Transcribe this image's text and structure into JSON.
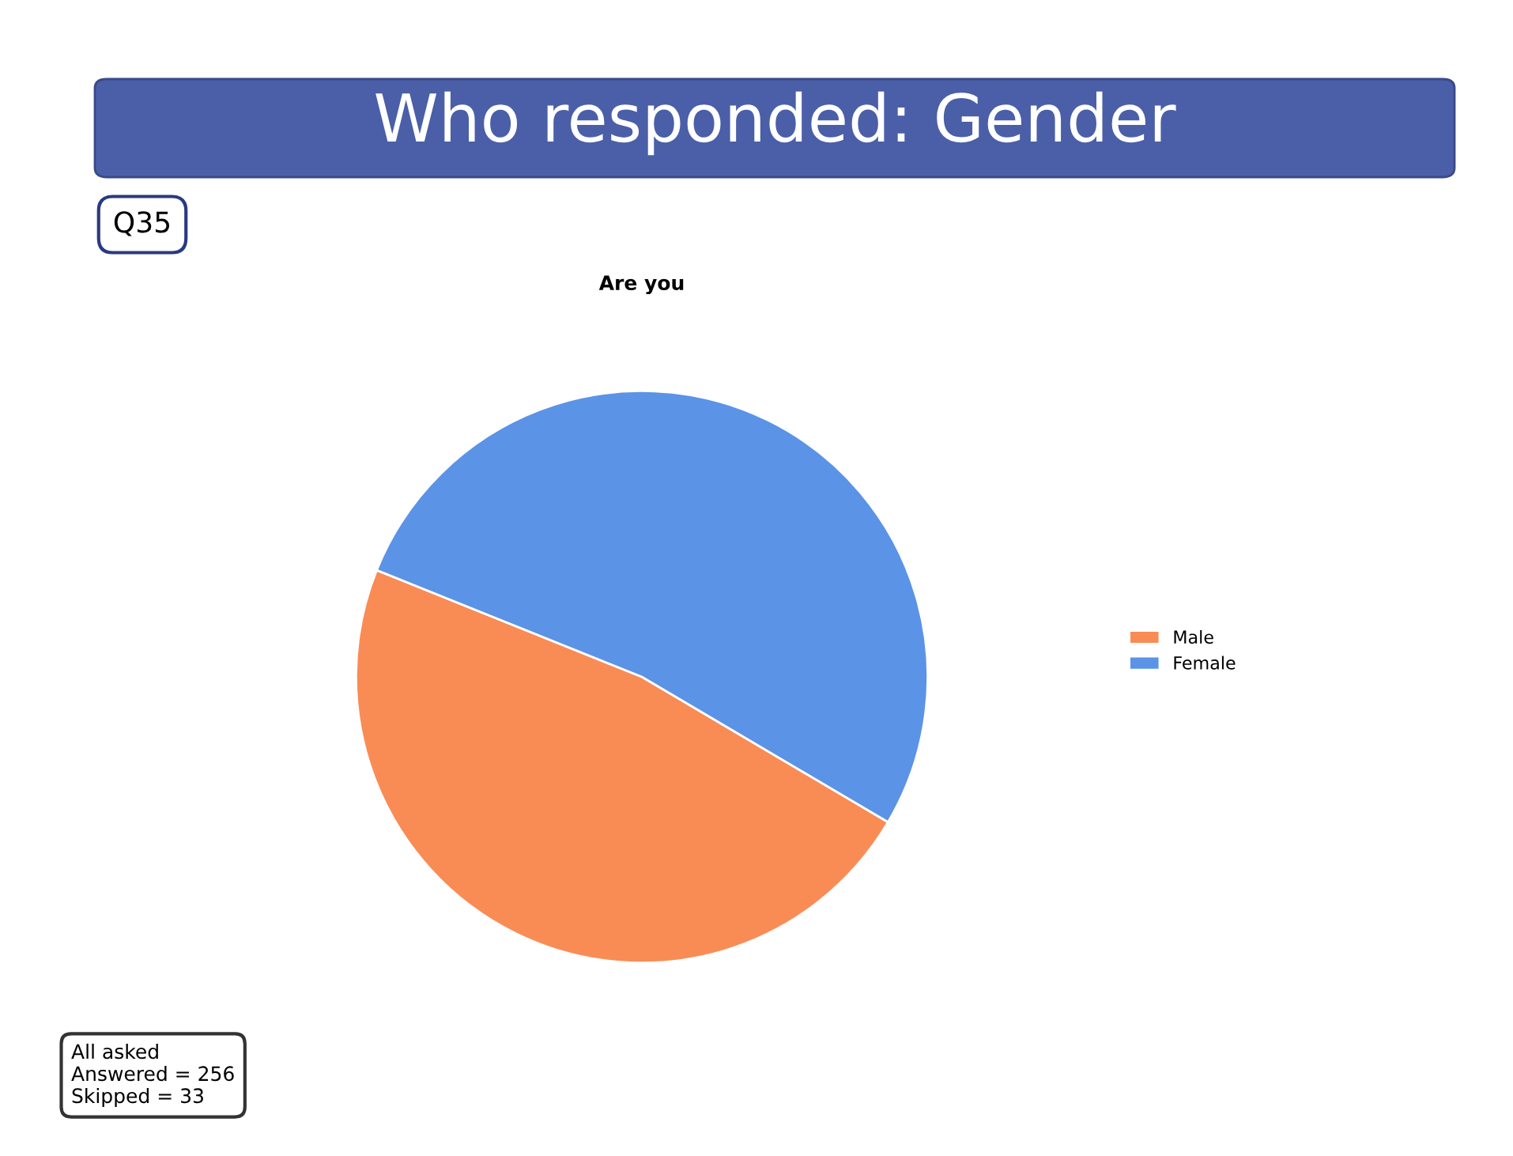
{
  "chart_data": {
    "type": "pie",
    "title": "Who responded: Gender",
    "subtitle": "Are you",
    "categories": [
      "Male",
      "Female"
    ],
    "values": [
      47.6,
      52.4
    ],
    "colors": [
      "#f98c55",
      "#5b93e6"
    ],
    "legend": "right",
    "annotations": [
      "Q35",
      "All asked\nAnswered = 256\nSkipped = 33"
    ]
  }
}
